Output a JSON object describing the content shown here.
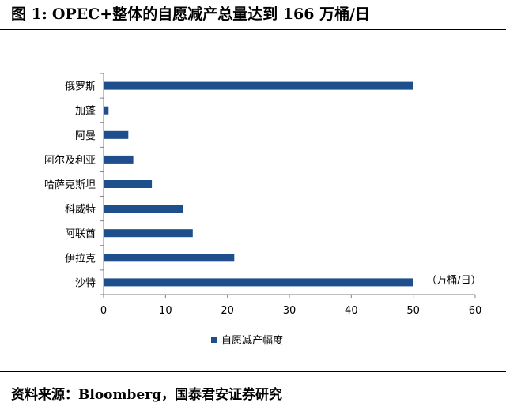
{
  "figure": {
    "label": "图 1:",
    "title": "OPEC+整体的自愿减产总量达到 166 万桶/日"
  },
  "source": "资料来源：Bloomberg，国泰君安证券研究",
  "chart_data": {
    "type": "bar",
    "orientation": "horizontal",
    "categories": [
      "俄罗斯",
      "加蓬",
      "阿曼",
      "阿尔及利亚",
      "哈萨克斯坦",
      "科威特",
      "阿联酋",
      "伊拉克",
      "沙特"
    ],
    "series": [
      {
        "name": "自愿减产幅度",
        "values": [
          50,
          0.8,
          4,
          4.8,
          7.8,
          12.8,
          14.4,
          21.1,
          50
        ]
      }
    ],
    "unit_label": "（万桶/日）",
    "xlim": [
      0,
      60
    ],
    "xticks": [
      "0",
      "10",
      "20",
      "30",
      "40",
      "50",
      "60"
    ],
    "grid": false,
    "legend_position": "bottom",
    "colors": {
      "bar": "#1F4E8C",
      "axis": "#7F7F7F"
    }
  }
}
